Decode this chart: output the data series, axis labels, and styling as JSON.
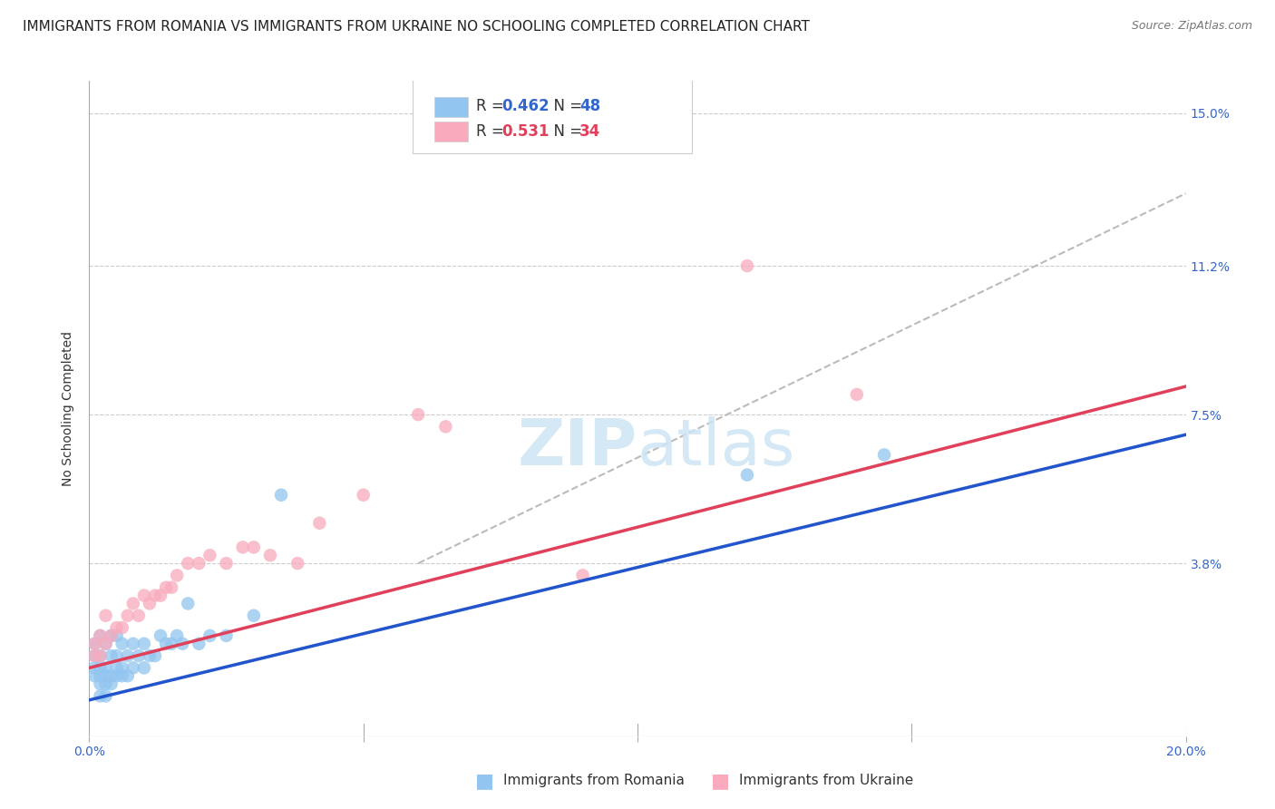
{
  "title": "IMMIGRANTS FROM ROMANIA VS IMMIGRANTS FROM UKRAINE NO SCHOOLING COMPLETED CORRELATION CHART",
  "source": "Source: ZipAtlas.com",
  "ylabel": "No Schooling Completed",
  "xlim": [
    0.0,
    0.2
  ],
  "ylim": [
    -0.005,
    0.158
  ],
  "xticks": [
    0.0,
    0.05,
    0.1,
    0.15,
    0.2
  ],
  "xtick_labels": [
    "0.0%",
    "",
    "",
    "",
    "20.0%"
  ],
  "ytick_labels_right": [
    "15.0%",
    "11.2%",
    "7.5%",
    "3.8%"
  ],
  "ytick_vals_right": [
    0.15,
    0.112,
    0.075,
    0.038
  ],
  "legend_R1": "R = 0.462",
  "legend_N1": "N = 48",
  "legend_R2": "R = 0.531",
  "legend_N2": "N = 34",
  "color_romania": "#92c5f0",
  "color_ukraine": "#f9aabc",
  "color_line_romania": "#2255cc",
  "color_line_ukraine": "#e0405a",
  "color_dashed": "#bbbbbb",
  "watermark_color": "#cde4f5",
  "background_color": "#ffffff",
  "grid_color": "#cccccc",
  "title_fontsize": 11,
  "axis_label_fontsize": 10,
  "tick_fontsize": 10,
  "legend_fontsize": 12,
  "romania_x": [
    0.001,
    0.001,
    0.001,
    0.001,
    0.002,
    0.002,
    0.002,
    0.002,
    0.002,
    0.002,
    0.003,
    0.003,
    0.003,
    0.003,
    0.003,
    0.004,
    0.004,
    0.004,
    0.004,
    0.005,
    0.005,
    0.005,
    0.005,
    0.006,
    0.006,
    0.006,
    0.007,
    0.007,
    0.008,
    0.008,
    0.009,
    0.01,
    0.01,
    0.011,
    0.012,
    0.013,
    0.014,
    0.015,
    0.016,
    0.017,
    0.018,
    0.02,
    0.022,
    0.025,
    0.03,
    0.035,
    0.12,
    0.145
  ],
  "romania_y": [
    0.01,
    0.012,
    0.015,
    0.018,
    0.005,
    0.008,
    0.01,
    0.012,
    0.015,
    0.02,
    0.005,
    0.008,
    0.01,
    0.012,
    0.018,
    0.008,
    0.01,
    0.015,
    0.02,
    0.01,
    0.012,
    0.015,
    0.02,
    0.01,
    0.012,
    0.018,
    0.01,
    0.015,
    0.012,
    0.018,
    0.015,
    0.012,
    0.018,
    0.015,
    0.015,
    0.02,
    0.018,
    0.018,
    0.02,
    0.018,
    0.028,
    0.018,
    0.02,
    0.02,
    0.025,
    0.055,
    0.06,
    0.065
  ],
  "ukraine_x": [
    0.001,
    0.001,
    0.002,
    0.002,
    0.003,
    0.003,
    0.004,
    0.005,
    0.006,
    0.007,
    0.008,
    0.009,
    0.01,
    0.011,
    0.012,
    0.013,
    0.014,
    0.015,
    0.016,
    0.018,
    0.02,
    0.022,
    0.025,
    0.028,
    0.03,
    0.033,
    0.038,
    0.042,
    0.05,
    0.06,
    0.065,
    0.09,
    0.12,
    0.14
  ],
  "ukraine_y": [
    0.015,
    0.018,
    0.015,
    0.02,
    0.018,
    0.025,
    0.02,
    0.022,
    0.022,
    0.025,
    0.028,
    0.025,
    0.03,
    0.028,
    0.03,
    0.03,
    0.032,
    0.032,
    0.035,
    0.038,
    0.038,
    0.04,
    0.038,
    0.042,
    0.042,
    0.04,
    0.038,
    0.048,
    0.055,
    0.075,
    0.072,
    0.035,
    0.112,
    0.08
  ],
  "line_romania": {
    "x0": 0.0,
    "y0": 0.004,
    "x1": 0.2,
    "y1": 0.07
  },
  "line_ukraine": {
    "x0": 0.0,
    "y0": 0.012,
    "x1": 0.2,
    "y1": 0.082
  },
  "dashed_line": {
    "x0": 0.06,
    "y0": 0.038,
    "x1": 0.2,
    "y1": 0.13
  }
}
